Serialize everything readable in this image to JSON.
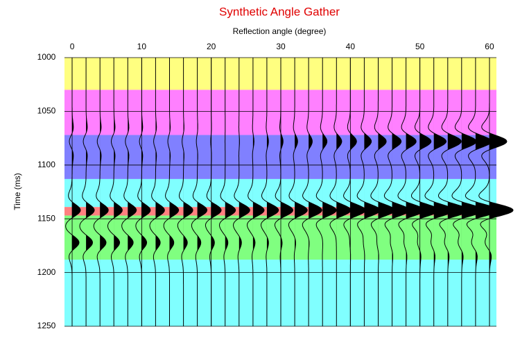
{
  "chart_data": {
    "type": "wiggle",
    "title": "Synthetic Angle Gather",
    "x_label": "Reflection angle (degree)",
    "y_label": "Time (ms)",
    "xlim": [
      -1.1,
      61
    ],
    "ylim": [
      1000,
      1250
    ],
    "xticks": [
      0,
      10,
      20,
      30,
      40,
      50,
      60
    ],
    "yticks": [
      1000,
      1050,
      1100,
      1150,
      1200,
      1250
    ],
    "grid": true,
    "layers": [
      {
        "top": 1000,
        "bottom": 1030,
        "color": "#ffff80"
      },
      {
        "top": 1030,
        "bottom": 1072,
        "color": "#ff80ff"
      },
      {
        "top": 1072,
        "bottom": 1113,
        "color": "#8080ff"
      },
      {
        "top": 1113,
        "bottom": 1139,
        "color": "#80ffff"
      },
      {
        "top": 1139,
        "bottom": 1147,
        "color": "#ff8080"
      },
      {
        "top": 1147,
        "bottom": 1188,
        "color": "#80ff80"
      },
      {
        "top": 1188,
        "bottom": 1250,
        "color": "#80ffff"
      }
    ],
    "angles": [
      0,
      2,
      4,
      6,
      8,
      10,
      12,
      14,
      16,
      18,
      20,
      22,
      24,
      26,
      28,
      30,
      32,
      34,
      36,
      38,
      40,
      42,
      44,
      46,
      48,
      50,
      52,
      54,
      56,
      58,
      60
    ],
    "events": [
      {
        "time": 1078,
        "amplitudes": [
          -0.4,
          -0.4,
          -0.39,
          -0.37,
          -0.35,
          -0.32,
          -0.28,
          -0.24,
          -0.19,
          -0.14,
          -0.08,
          -0.01,
          0.06,
          0.15,
          0.23,
          0.33,
          0.42,
          0.53,
          0.64,
          0.76,
          0.89,
          1.02,
          1.16,
          1.31,
          1.46,
          1.61,
          1.78,
          1.95,
          2.13,
          2.31,
          2.5
        ]
      },
      {
        "time": 1142,
        "amplitudes": [
          1.2,
          1.2,
          1.21,
          1.22,
          1.24,
          1.26,
          1.29,
          1.32,
          1.36,
          1.4,
          1.44,
          1.49,
          1.55,
          1.61,
          1.68,
          1.75,
          1.82,
          1.91,
          1.99,
          2.08,
          2.18,
          2.28,
          2.38,
          2.49,
          2.61,
          2.73,
          2.85,
          2.98,
          3.12,
          3.25,
          3.4
        ]
      },
      {
        "time": 1172,
        "amplitudes": [
          1.0,
          0.95,
          0.89,
          0.84,
          0.79,
          0.73,
          0.68,
          0.63,
          0.57,
          0.52,
          0.47,
          0.41,
          0.36,
          0.31,
          0.25,
          0.2,
          0.15,
          0.09,
          0.04,
          -0.01,
          -0.07,
          -0.12,
          -0.17,
          -0.23,
          -0.28,
          -0.33,
          -0.39,
          -0.44,
          -0.49,
          -0.55,
          -0.6
        ]
      }
    ]
  }
}
